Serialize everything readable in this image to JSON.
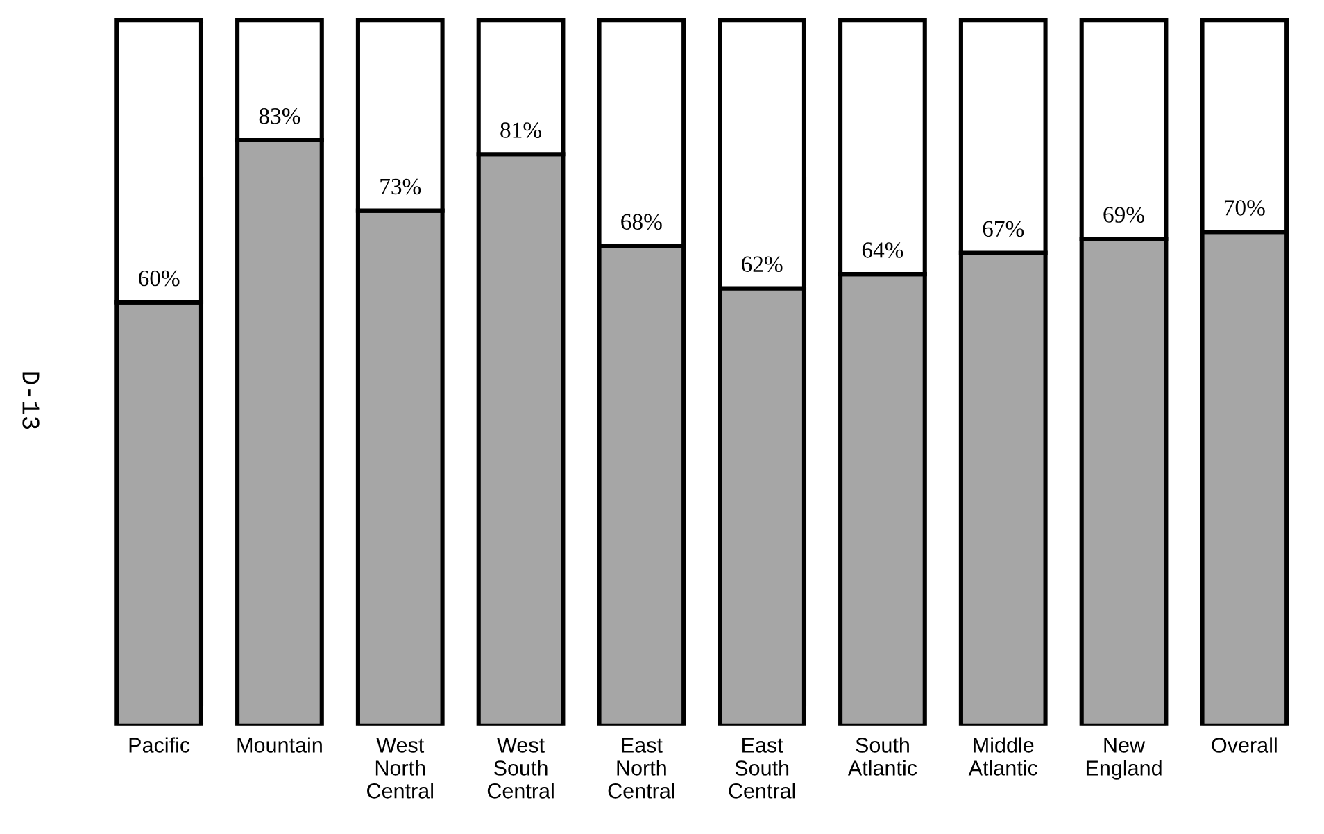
{
  "chart_data": {
    "type": "bar",
    "stacked": true,
    "categories": [
      "Pacific",
      "Mountain",
      "West North Central",
      "West South Central",
      "East North Central",
      "East South Central",
      "South Atlantic",
      "Middle Atlantic",
      "New England",
      "Overall"
    ],
    "series": [
      {
        "color": "#a6a6a6",
        "values": [
          60,
          83,
          73,
          81,
          68,
          62,
          64,
          67,
          69,
          70
        ],
        "value_labels": [
          "60%",
          "83%",
          "73%",
          "81%",
          "68%",
          "62%",
          "64%",
          "67%",
          "69%",
          "70%"
        ]
      },
      {
        "color": "#ffffff",
        "values": [
          40,
          17,
          27,
          19,
          32,
          38,
          36,
          33,
          31,
          30
        ]
      }
    ],
    "annotations": [
      "D-13"
    ]
  }
}
